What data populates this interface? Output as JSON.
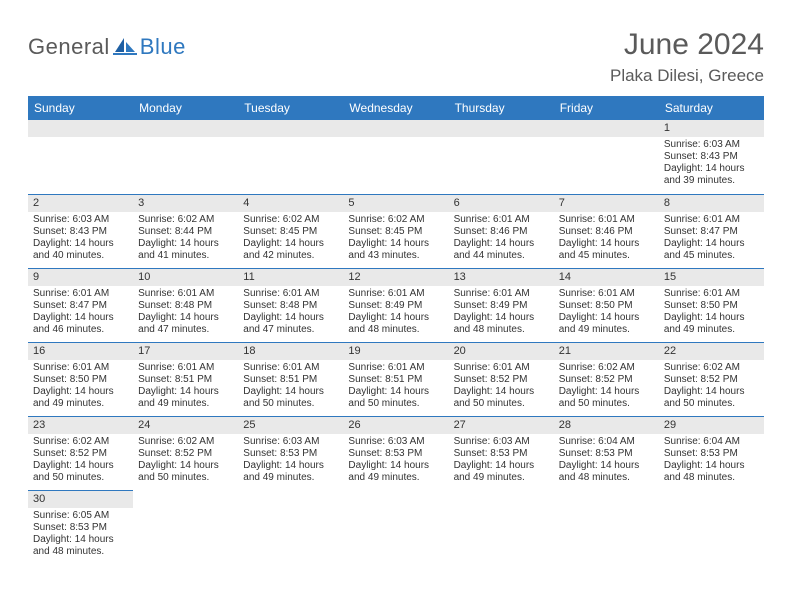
{
  "brand": {
    "part1": "General",
    "part2": "Blue"
  },
  "colors": {
    "header_bg": "#2f78bf",
    "header_text": "#ffffff",
    "daynum_bg": "#e9e9e9",
    "text": "#333333",
    "border": "#2f78bf",
    "logo_gray": "#5a5a5a",
    "logo_blue": "#2f78bf"
  },
  "title": "June 2024",
  "location": "Plaka Dilesi, Greece",
  "day_headers": [
    "Sunday",
    "Monday",
    "Tuesday",
    "Wednesday",
    "Thursday",
    "Friday",
    "Saturday"
  ],
  "weeks": [
    [
      {
        "blank": true
      },
      {
        "blank": true
      },
      {
        "blank": true
      },
      {
        "blank": true
      },
      {
        "blank": true
      },
      {
        "blank": true
      },
      {
        "day": "1",
        "sunrise": "Sunrise: 6:03 AM",
        "sunset": "Sunset: 8:43 PM",
        "dl1": "Daylight: 14 hours",
        "dl2": "and 39 minutes."
      }
    ],
    [
      {
        "day": "2",
        "sunrise": "Sunrise: 6:03 AM",
        "sunset": "Sunset: 8:43 PM",
        "dl1": "Daylight: 14 hours",
        "dl2": "and 40 minutes."
      },
      {
        "day": "3",
        "sunrise": "Sunrise: 6:02 AM",
        "sunset": "Sunset: 8:44 PM",
        "dl1": "Daylight: 14 hours",
        "dl2": "and 41 minutes."
      },
      {
        "day": "4",
        "sunrise": "Sunrise: 6:02 AM",
        "sunset": "Sunset: 8:45 PM",
        "dl1": "Daylight: 14 hours",
        "dl2": "and 42 minutes."
      },
      {
        "day": "5",
        "sunrise": "Sunrise: 6:02 AM",
        "sunset": "Sunset: 8:45 PM",
        "dl1": "Daylight: 14 hours",
        "dl2": "and 43 minutes."
      },
      {
        "day": "6",
        "sunrise": "Sunrise: 6:01 AM",
        "sunset": "Sunset: 8:46 PM",
        "dl1": "Daylight: 14 hours",
        "dl2": "and 44 minutes."
      },
      {
        "day": "7",
        "sunrise": "Sunrise: 6:01 AM",
        "sunset": "Sunset: 8:46 PM",
        "dl1": "Daylight: 14 hours",
        "dl2": "and 45 minutes."
      },
      {
        "day": "8",
        "sunrise": "Sunrise: 6:01 AM",
        "sunset": "Sunset: 8:47 PM",
        "dl1": "Daylight: 14 hours",
        "dl2": "and 45 minutes."
      }
    ],
    [
      {
        "day": "9",
        "sunrise": "Sunrise: 6:01 AM",
        "sunset": "Sunset: 8:47 PM",
        "dl1": "Daylight: 14 hours",
        "dl2": "and 46 minutes."
      },
      {
        "day": "10",
        "sunrise": "Sunrise: 6:01 AM",
        "sunset": "Sunset: 8:48 PM",
        "dl1": "Daylight: 14 hours",
        "dl2": "and 47 minutes."
      },
      {
        "day": "11",
        "sunrise": "Sunrise: 6:01 AM",
        "sunset": "Sunset: 8:48 PM",
        "dl1": "Daylight: 14 hours",
        "dl2": "and 47 minutes."
      },
      {
        "day": "12",
        "sunrise": "Sunrise: 6:01 AM",
        "sunset": "Sunset: 8:49 PM",
        "dl1": "Daylight: 14 hours",
        "dl2": "and 48 minutes."
      },
      {
        "day": "13",
        "sunrise": "Sunrise: 6:01 AM",
        "sunset": "Sunset: 8:49 PM",
        "dl1": "Daylight: 14 hours",
        "dl2": "and 48 minutes."
      },
      {
        "day": "14",
        "sunrise": "Sunrise: 6:01 AM",
        "sunset": "Sunset: 8:50 PM",
        "dl1": "Daylight: 14 hours",
        "dl2": "and 49 minutes."
      },
      {
        "day": "15",
        "sunrise": "Sunrise: 6:01 AM",
        "sunset": "Sunset: 8:50 PM",
        "dl1": "Daylight: 14 hours",
        "dl2": "and 49 minutes."
      }
    ],
    [
      {
        "day": "16",
        "sunrise": "Sunrise: 6:01 AM",
        "sunset": "Sunset: 8:50 PM",
        "dl1": "Daylight: 14 hours",
        "dl2": "and 49 minutes."
      },
      {
        "day": "17",
        "sunrise": "Sunrise: 6:01 AM",
        "sunset": "Sunset: 8:51 PM",
        "dl1": "Daylight: 14 hours",
        "dl2": "and 49 minutes."
      },
      {
        "day": "18",
        "sunrise": "Sunrise: 6:01 AM",
        "sunset": "Sunset: 8:51 PM",
        "dl1": "Daylight: 14 hours",
        "dl2": "and 50 minutes."
      },
      {
        "day": "19",
        "sunrise": "Sunrise: 6:01 AM",
        "sunset": "Sunset: 8:51 PM",
        "dl1": "Daylight: 14 hours",
        "dl2": "and 50 minutes."
      },
      {
        "day": "20",
        "sunrise": "Sunrise: 6:01 AM",
        "sunset": "Sunset: 8:52 PM",
        "dl1": "Daylight: 14 hours",
        "dl2": "and 50 minutes."
      },
      {
        "day": "21",
        "sunrise": "Sunrise: 6:02 AM",
        "sunset": "Sunset: 8:52 PM",
        "dl1": "Daylight: 14 hours",
        "dl2": "and 50 minutes."
      },
      {
        "day": "22",
        "sunrise": "Sunrise: 6:02 AM",
        "sunset": "Sunset: 8:52 PM",
        "dl1": "Daylight: 14 hours",
        "dl2": "and 50 minutes."
      }
    ],
    [
      {
        "day": "23",
        "sunrise": "Sunrise: 6:02 AM",
        "sunset": "Sunset: 8:52 PM",
        "dl1": "Daylight: 14 hours",
        "dl2": "and 50 minutes."
      },
      {
        "day": "24",
        "sunrise": "Sunrise: 6:02 AM",
        "sunset": "Sunset: 8:52 PM",
        "dl1": "Daylight: 14 hours",
        "dl2": "and 50 minutes."
      },
      {
        "day": "25",
        "sunrise": "Sunrise: 6:03 AM",
        "sunset": "Sunset: 8:53 PM",
        "dl1": "Daylight: 14 hours",
        "dl2": "and 49 minutes."
      },
      {
        "day": "26",
        "sunrise": "Sunrise: 6:03 AM",
        "sunset": "Sunset: 8:53 PM",
        "dl1": "Daylight: 14 hours",
        "dl2": "and 49 minutes."
      },
      {
        "day": "27",
        "sunrise": "Sunrise: 6:03 AM",
        "sunset": "Sunset: 8:53 PM",
        "dl1": "Daylight: 14 hours",
        "dl2": "and 49 minutes."
      },
      {
        "day": "28",
        "sunrise": "Sunrise: 6:04 AM",
        "sunset": "Sunset: 8:53 PM",
        "dl1": "Daylight: 14 hours",
        "dl2": "and 48 minutes."
      },
      {
        "day": "29",
        "sunrise": "Sunrise: 6:04 AM",
        "sunset": "Sunset: 8:53 PM",
        "dl1": "Daylight: 14 hours",
        "dl2": "and 48 minutes."
      }
    ],
    [
      {
        "day": "30",
        "sunrise": "Sunrise: 6:05 AM",
        "sunset": "Sunset: 8:53 PM",
        "dl1": "Daylight: 14 hours",
        "dl2": "and 48 minutes."
      },
      {
        "blank": true
      },
      {
        "blank": true
      },
      {
        "blank": true
      },
      {
        "blank": true
      },
      {
        "blank": true
      },
      {
        "blank": true
      }
    ]
  ]
}
